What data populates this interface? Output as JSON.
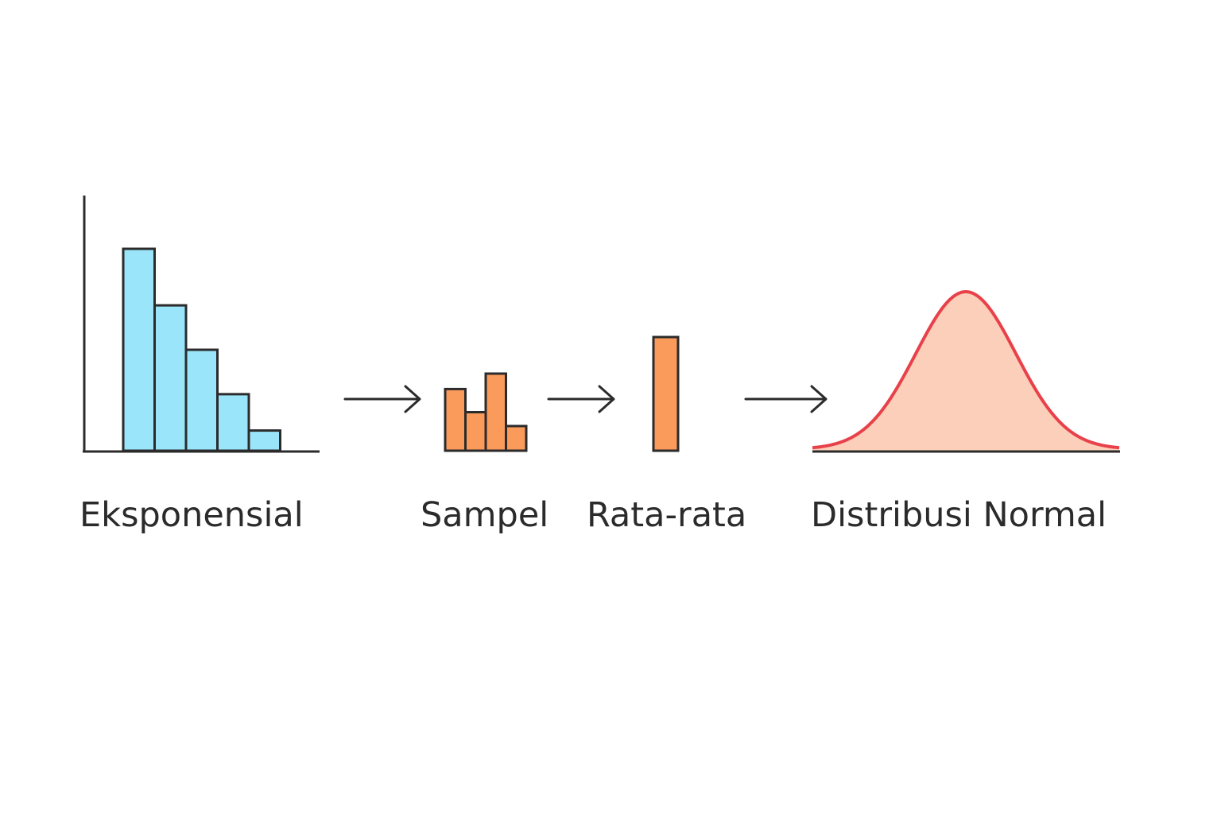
{
  "stages": [
    {
      "label": "Eksponensial"
    },
    {
      "label": "Sampel"
    },
    {
      "label": "Rata-rata"
    },
    {
      "label": "Distribusi Normal"
    }
  ],
  "histograms": {
    "exponential": {
      "values": [
        1.0,
        0.72,
        0.5,
        0.28,
        0.1
      ]
    },
    "sample": {
      "values": [
        0.8,
        0.5,
        1.0,
        0.32
      ]
    },
    "mean": {
      "values": [
        1.0
      ]
    }
  },
  "colors": {
    "exponential_bar": "#9ae5f9",
    "sample_bar": "#fa9a5b",
    "curve_fill": "#fbcfba",
    "curve_stroke": "#e8414a",
    "ink": "#2b2b2b"
  },
  "icons": [
    "right-arrow-icon",
    "right-arrow-icon",
    "right-arrow-icon"
  ]
}
